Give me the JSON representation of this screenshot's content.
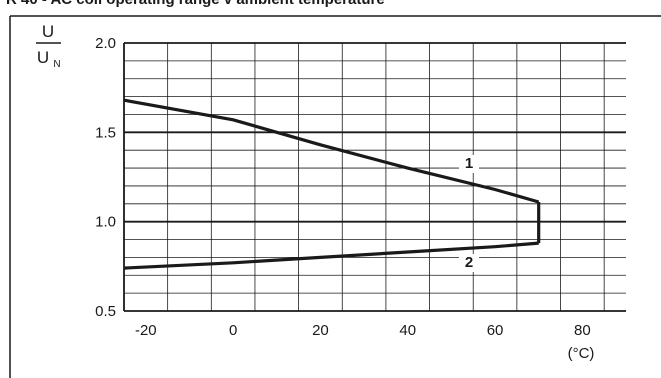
{
  "title": "R 40 - AC coil operating range v ambient temperature",
  "chart_data": {
    "type": "line",
    "title": "R 40 - AC coil operating range v ambient temperature",
    "ylabel_num": "U",
    "ylabel_den": "U",
    "ylabel_den_sub": "N",
    "xunit": "(°C)",
    "xlim": [
      -25,
      90
    ],
    "ylim": [
      0.5,
      2.0
    ],
    "xticks": [
      -20,
      0,
      20,
      40,
      60,
      80
    ],
    "yticks": [
      "0.5",
      "1.0",
      "1.5",
      "2.0"
    ],
    "grid": true,
    "series": [
      {
        "name": "1",
        "points": [
          [
            -25,
            1.68
          ],
          [
            0,
            1.57
          ],
          [
            20,
            1.43
          ],
          [
            40,
            1.3
          ],
          [
            60,
            1.18
          ],
          [
            70,
            1.11
          ]
        ]
      },
      {
        "name": "2",
        "points": [
          [
            -25,
            0.74
          ],
          [
            0,
            0.77
          ],
          [
            20,
            0.8
          ],
          [
            40,
            0.83
          ],
          [
            60,
            0.86
          ],
          [
            70,
            0.88
          ]
        ]
      }
    ],
    "connector": {
      "x": 70,
      "y_from": 0.88,
      "y_to": 1.11
    }
  }
}
